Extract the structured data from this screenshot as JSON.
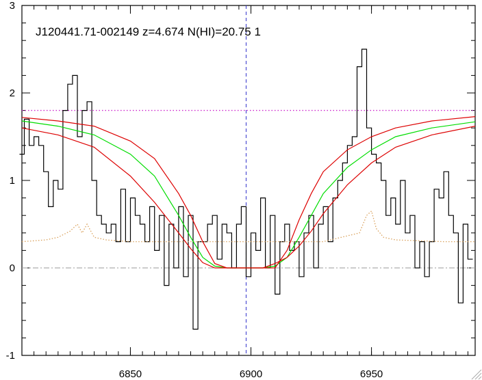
{
  "chart_data": {
    "type": "line",
    "title": "J120441.71-002149 z=4.674 N(HI)=20.75 1",
    "xlabel": "",
    "ylabel": "",
    "xlim": [
      6805,
      6993
    ],
    "ylim": [
      -1,
      3
    ],
    "x_ticks": [
      6850,
      6900,
      6950
    ],
    "y_ticks": [
      -1,
      0,
      1,
      2,
      3
    ],
    "grid": false,
    "legend": "none",
    "colors": {
      "flux": "#000000",
      "error": "#d9a05a",
      "fit": "#00dd00",
      "fit_bounds": "#dd0000",
      "continuum": "#cc22cc",
      "zero_line": "#999999",
      "center_line": "#3333cc"
    },
    "center_wavelength": 6898,
    "continuum_level": 1.8,
    "series": [
      {
        "role": "flux",
        "style": "steps",
        "x": [
          6805,
          6807,
          6809,
          6811,
          6813,
          6815,
          6817,
          6819,
          6821,
          6823,
          6825,
          6827,
          6829,
          6831,
          6833,
          6835,
          6837,
          6839,
          6841,
          6843,
          6845,
          6847,
          6849,
          6851,
          6853,
          6855,
          6857,
          6859,
          6861,
          6863,
          6865,
          6867,
          6869,
          6871,
          6873,
          6875,
          6877,
          6879,
          6881,
          6883,
          6885,
          6887,
          6889,
          6891,
          6893,
          6895,
          6897,
          6899,
          6901,
          6903,
          6905,
          6907,
          6909,
          6911,
          6913,
          6915,
          6917,
          6919,
          6921,
          6923,
          6925,
          6927,
          6929,
          6931,
          6933,
          6935,
          6937,
          6939,
          6941,
          6943,
          6945,
          6947,
          6949,
          6951,
          6953,
          6955,
          6957,
          6959,
          6961,
          6963,
          6965,
          6967,
          6969,
          6971,
          6973,
          6975,
          6977,
          6979,
          6981,
          6983,
          6985,
          6987,
          6989,
          6991
        ],
        "y": [
          1.3,
          1.7,
          1.4,
          1.5,
          1.4,
          1.1,
          0.7,
          1.0,
          0.9,
          1.8,
          2.1,
          2.2,
          1.5,
          1.8,
          1.9,
          1.0,
          0.6,
          0.5,
          0.4,
          0.5,
          0.3,
          0.9,
          0.3,
          0.8,
          0.6,
          0.5,
          0.3,
          0.7,
          0.2,
          0.6,
          -0.2,
          0.5,
          0.0,
          0.7,
          -0.1,
          0.6,
          -0.7,
          0.3,
          0.3,
          0.5,
          0.6,
          0.1,
          0.5,
          0.4,
          0.0,
          0.5,
          0.7,
          -0.1,
          0.4,
          0.2,
          0.8,
          0.0,
          0.6,
          -0.3,
          0.3,
          0.5,
          0.2,
          0.3,
          -0.1,
          0.4,
          0.6,
          0.0,
          0.5,
          0.7,
          0.3,
          0.8,
          1.0,
          1.2,
          1.4,
          1.5,
          2.3,
          2.5,
          1.6,
          1.3,
          1.2,
          1.0,
          0.6,
          0.8,
          0.5,
          1.0,
          0.4,
          0.6,
          0.0,
          0.3,
          -0.1,
          0.3,
          0.9,
          0.8,
          1.1,
          0.6,
          0.4,
          -0.4,
          0.5,
          0.1
        ]
      },
      {
        "role": "error",
        "style": "dotted",
        "x": [
          6805,
          6815,
          6820,
          6825,
          6828,
          6830,
          6832,
          6835,
          6840,
          6850,
          6870,
          6900,
          6930,
          6945,
          6948,
          6950,
          6952,
          6955,
          6960,
          6980,
          6993
        ],
        "y": [
          0.3,
          0.32,
          0.35,
          0.42,
          0.5,
          0.4,
          0.5,
          0.35,
          0.32,
          0.3,
          0.3,
          0.3,
          0.3,
          0.4,
          0.6,
          0.65,
          0.45,
          0.35,
          0.32,
          0.3,
          0.3
        ]
      },
      {
        "role": "fit",
        "style": "solid",
        "x": [
          6805,
          6820,
          6835,
          6850,
          6860,
          6870,
          6875,
          6880,
          6885,
          6890,
          6895,
          6900,
          6905,
          6910,
          6915,
          6920,
          6925,
          6930,
          6940,
          6950,
          6960,
          6975,
          6993
        ],
        "y": [
          1.68,
          1.62,
          1.52,
          1.3,
          1.05,
          0.6,
          0.35,
          0.12,
          0.02,
          0.0,
          0.0,
          0.0,
          0.0,
          0.02,
          0.12,
          0.35,
          0.6,
          0.85,
          1.15,
          1.35,
          1.5,
          1.6,
          1.67
        ]
      },
      {
        "role": "fit_upper",
        "style": "solid",
        "x": [
          6805,
          6820,
          6835,
          6850,
          6860,
          6870,
          6875,
          6880,
          6885,
          6890,
          6895,
          6900,
          6905,
          6910,
          6915,
          6920,
          6925,
          6930,
          6940,
          6950,
          6960,
          6975,
          6993
        ],
        "y": [
          1.72,
          1.68,
          1.62,
          1.45,
          1.25,
          0.85,
          0.6,
          0.3,
          0.05,
          0.0,
          0.0,
          0.0,
          0.0,
          0.0,
          0.2,
          0.55,
          0.85,
          1.1,
          1.35,
          1.5,
          1.6,
          1.68,
          1.73
        ]
      },
      {
        "role": "fit_lower",
        "style": "solid",
        "x": [
          6805,
          6820,
          6835,
          6850,
          6860,
          6870,
          6875,
          6880,
          6885,
          6890,
          6895,
          6900,
          6905,
          6910,
          6915,
          6920,
          6925,
          6930,
          6940,
          6950,
          6960,
          6975,
          6993
        ],
        "y": [
          1.6,
          1.52,
          1.38,
          1.05,
          0.75,
          0.4,
          0.22,
          0.06,
          0.0,
          0.0,
          0.0,
          0.0,
          0.0,
          0.05,
          0.12,
          0.25,
          0.42,
          0.62,
          0.95,
          1.2,
          1.38,
          1.52,
          1.62
        ]
      }
    ]
  }
}
